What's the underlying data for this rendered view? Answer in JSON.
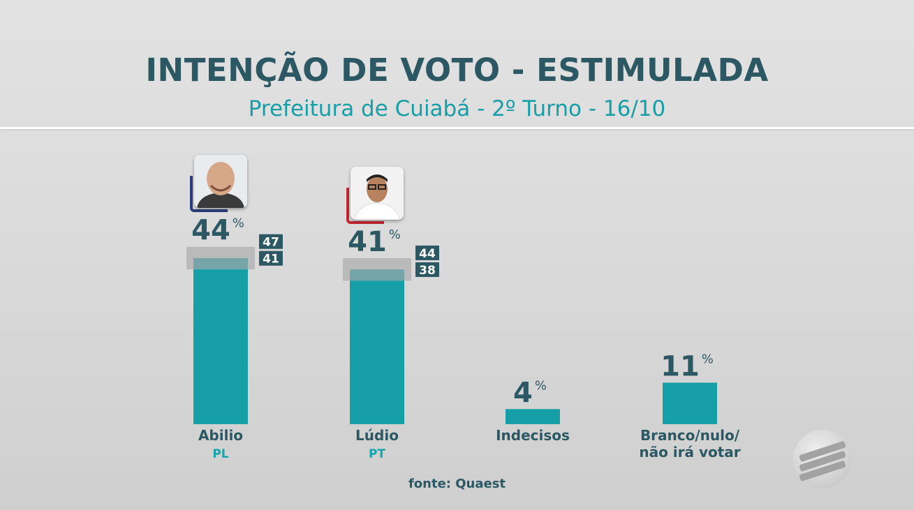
{
  "header": {
    "title": "INTENÇÃO DE VOTO - ESTIMULADA",
    "subtitle": "Prefeitura de Cuiabá - 2º Turno - 16/10"
  },
  "source": "fonte: Quaest",
  "colors": {
    "bar": "#169fa6",
    "value_text": "#2b5862",
    "margin_band": "#a9a9a9",
    "range_box": "#2b5862",
    "party_text": "#15a5ad",
    "pl_accent": "#2a3d7c",
    "pt_accent": "#c0282f"
  },
  "icons": {
    "abilio_photo": "candidate-photo-icon",
    "ludio_photo": "candidate-photo-icon",
    "broadcaster_logo": "channel-logo-icon"
  },
  "chart_data": {
    "type": "bar",
    "categories": [
      "Abilio",
      "Lúdio",
      "Indecisos",
      "Branco/nulo/\nnão irá votar"
    ],
    "parties": [
      "PL",
      "PT",
      "",
      ""
    ],
    "values": [
      44,
      41,
      4,
      11
    ],
    "unit": "%",
    "ranges": [
      {
        "high": 47,
        "low": 41
      },
      {
        "high": 44,
        "low": 38
      },
      null,
      null
    ],
    "ylim": [
      0,
      50
    ],
    "grid": false,
    "legend": "none"
  }
}
